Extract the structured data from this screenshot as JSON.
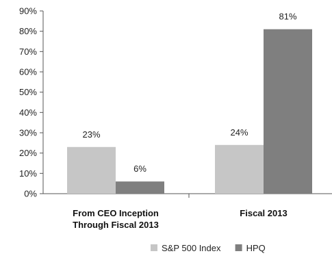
{
  "chart_data": {
    "type": "bar",
    "categories": [
      [
        "From CEO Inception",
        "Through Fiscal 2013"
      ],
      [
        "Fiscal 2013"
      ]
    ],
    "series": [
      {
        "name": "S&P 500 Index",
        "values": [
          23,
          24
        ],
        "labels": [
          "23%",
          "24%"
        ],
        "color": "#c6c6c6"
      },
      {
        "name": "HPQ",
        "values": [
          6,
          81
        ],
        "labels": [
          "6%",
          "81%"
        ],
        "color": "#7f7f7f"
      }
    ],
    "ylim": [
      0,
      90
    ],
    "yticks": [
      "0%",
      "10%",
      "20%",
      "30%",
      "40%",
      "50%",
      "60%",
      "70%",
      "80%",
      "90%"
    ],
    "grid": false,
    "legend": "bottom"
  }
}
